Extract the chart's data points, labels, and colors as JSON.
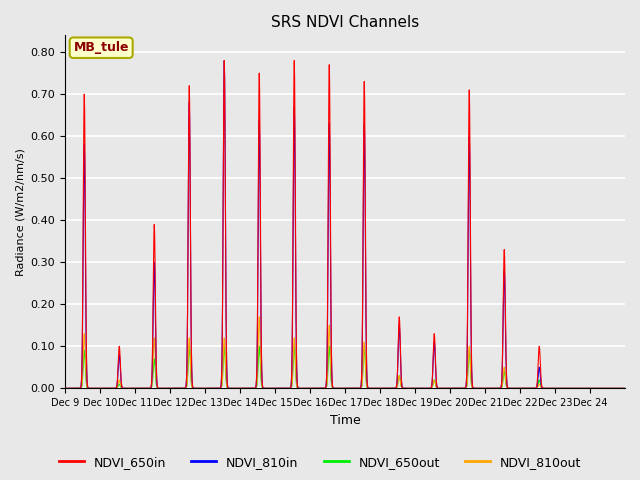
{
  "title": "SRS NDVI Channels",
  "xlabel": "Time",
  "ylabel": "Radiance (W/m2/nm/s)",
  "annotation": "MB_tule",
  "ylim": [
    0.0,
    0.84
  ],
  "yticks": [
    0.0,
    0.1,
    0.2,
    0.3,
    0.4,
    0.5,
    0.6,
    0.7,
    0.8
  ],
  "fig_bg": "#e8e8e8",
  "ax_bg": "#e8e8e8",
  "lines": {
    "NDVI_650in": {
      "color": "red",
      "lw": 0.8
    },
    "NDVI_810in": {
      "color": "blue",
      "lw": 0.8
    },
    "NDVI_650out": {
      "color": "#00ee00",
      "lw": 0.8
    },
    "NDVI_810out": {
      "color": "orange",
      "lw": 0.8
    }
  },
  "xtick_labels": [
    "Dec 9",
    "Dec 10",
    "Dec 11",
    "Dec 12",
    "Dec 13",
    "Dec 14",
    "Dec 15",
    "Dec 16",
    "Dec 17",
    "Dec 18",
    "Dec 19",
    "Dec 20",
    "Dec 21",
    "Dec 22",
    "Dec 23",
    "Dec 24"
  ],
  "day_peaks": {
    "650in": [
      0.7,
      0.1,
      0.39,
      0.72,
      0.78,
      0.75,
      0.78,
      0.77,
      0.73,
      0.17,
      0.13,
      0.71,
      0.33,
      0.1,
      0.0,
      0.0
    ],
    "810in": [
      0.58,
      0.08,
      0.3,
      0.68,
      0.78,
      0.64,
      0.67,
      0.63,
      0.63,
      0.15,
      0.11,
      0.6,
      0.28,
      0.05,
      0.0,
      0.0
    ],
    "650out": [
      0.09,
      0.01,
      0.07,
      0.1,
      0.1,
      0.1,
      0.1,
      0.1,
      0.1,
      0.03,
      0.02,
      0.09,
      0.04,
      0.02,
      0.0,
      0.0
    ],
    "810out": [
      0.13,
      0.02,
      0.12,
      0.12,
      0.12,
      0.17,
      0.12,
      0.15,
      0.11,
      0.03,
      0.02,
      0.1,
      0.05,
      0.01,
      0.0,
      0.0
    ]
  },
  "n_days": 16,
  "pts_per_day": 100
}
